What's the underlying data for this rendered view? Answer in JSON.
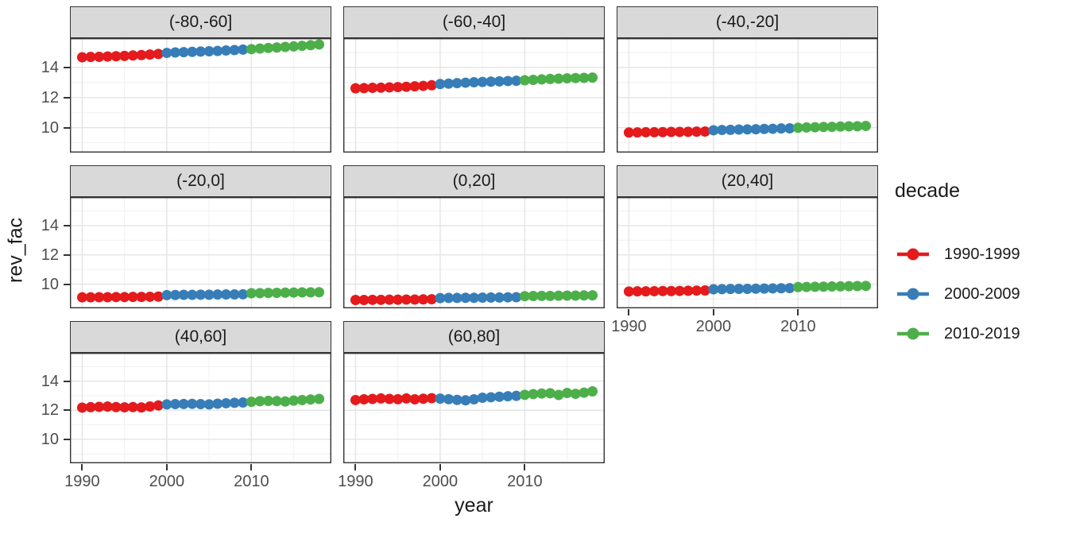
{
  "chart_data": {
    "type": "scatter",
    "title": "",
    "xlabel": "year",
    "ylabel": "rev_fac",
    "grid": true,
    "legend_position": "right",
    "legend": {
      "title": "decade",
      "entries": [
        {
          "label": "1990-1999",
          "color": "#E41A1C"
        },
        {
          "label": "2000-2009",
          "color": "#377EB8"
        },
        {
          "label": "2010-2019",
          "color": "#4DAF4A"
        }
      ]
    },
    "decades": [
      {
        "name": "1990-1999",
        "from": 1990,
        "to": 1999,
        "color": "#E41A1C"
      },
      {
        "name": "2000-2009",
        "from": 2000,
        "to": 2009,
        "color": "#377EB8"
      },
      {
        "name": "2010-2019",
        "from": 2010,
        "to": 2019,
        "color": "#4DAF4A"
      }
    ],
    "years": [
      1990,
      1991,
      1992,
      1993,
      1994,
      1995,
      1996,
      1997,
      1998,
      1999,
      2000,
      2001,
      2002,
      2003,
      2004,
      2005,
      2006,
      2007,
      2008,
      2009,
      2010,
      2011,
      2012,
      2013,
      2014,
      2015,
      2016,
      2017,
      2018
    ],
    "x_ticks": [
      1990,
      2000,
      2010
    ],
    "x_minor": [
      1995,
      2005,
      2015
    ],
    "y_ticks": [
      10,
      12,
      14
    ],
    "y_minor": [
      9,
      11,
      13,
      15
    ],
    "xlim": [
      1988.55,
      2019.45
    ],
    "ylim": [
      8.35,
      15.95
    ],
    "facets": [
      {
        "label": "(-80,-60]",
        "values": [
          14.68,
          14.7,
          14.71,
          14.73,
          14.75,
          14.77,
          14.8,
          14.83,
          14.86,
          14.9,
          14.97,
          15.0,
          15.02,
          15.04,
          15.06,
          15.08,
          15.1,
          15.13,
          15.16,
          15.19,
          15.22,
          15.26,
          15.3,
          15.33,
          15.37,
          15.4,
          15.44,
          15.48,
          15.53
        ]
      },
      {
        "label": "(-60,-40]",
        "values": [
          12.62,
          12.63,
          12.65,
          12.66,
          12.68,
          12.7,
          12.72,
          12.75,
          12.78,
          12.82,
          12.9,
          12.93,
          12.96,
          12.99,
          13.02,
          13.04,
          13.06,
          13.08,
          13.1,
          13.12,
          13.15,
          13.18,
          13.21,
          13.24,
          13.26,
          13.28,
          13.3,
          13.31,
          13.33
        ]
      },
      {
        "label": "(-40,-20]",
        "values": [
          9.68,
          9.69,
          9.7,
          9.7,
          9.71,
          9.72,
          9.72,
          9.73,
          9.74,
          9.75,
          9.83,
          9.85,
          9.86,
          9.88,
          9.89,
          9.9,
          9.92,
          9.93,
          9.95,
          9.96,
          10.0,
          10.02,
          10.03,
          10.05,
          10.06,
          10.08,
          10.09,
          10.1,
          10.12
        ]
      },
      {
        "label": "(-20,0]",
        "values": [
          9.1,
          9.1,
          9.11,
          9.11,
          9.12,
          9.12,
          9.13,
          9.13,
          9.14,
          9.15,
          9.25,
          9.26,
          9.27,
          9.27,
          9.28,
          9.28,
          9.29,
          9.3,
          9.3,
          9.31,
          9.38,
          9.39,
          9.4,
          9.41,
          9.42,
          9.43,
          9.44,
          9.44,
          9.45
        ]
      },
      {
        "label": "(0,20]",
        "values": [
          8.92,
          8.92,
          8.93,
          8.93,
          8.94,
          8.94,
          8.95,
          8.95,
          8.96,
          8.97,
          9.05,
          9.06,
          9.06,
          9.07,
          9.07,
          9.08,
          9.09,
          9.09,
          9.1,
          9.11,
          9.18,
          9.19,
          9.2,
          9.2,
          9.21,
          9.22,
          9.22,
          9.23,
          9.24
        ]
      },
      {
        "label": "(20,40]",
        "values": [
          9.5,
          9.51,
          9.51,
          9.52,
          9.53,
          9.53,
          9.54,
          9.55,
          9.56,
          9.57,
          9.65,
          9.66,
          9.67,
          9.68,
          9.68,
          9.69,
          9.7,
          9.71,
          9.72,
          9.73,
          9.8,
          9.81,
          9.82,
          9.83,
          9.84,
          9.85,
          9.86,
          9.87,
          9.88
        ]
      },
      {
        "label": "(40,60]",
        "values": [
          12.18,
          12.21,
          12.23,
          12.25,
          12.22,
          12.2,
          12.22,
          12.19,
          12.26,
          12.33,
          12.4,
          12.42,
          12.43,
          12.44,
          12.42,
          12.4,
          12.45,
          12.48,
          12.51,
          12.53,
          12.58,
          12.62,
          12.64,
          12.63,
          12.6,
          12.66,
          12.7,
          12.74,
          12.78
        ]
      },
      {
        "label": "(60,80]",
        "values": [
          12.7,
          12.75,
          12.78,
          12.81,
          12.78,
          12.76,
          12.81,
          12.75,
          12.79,
          12.83,
          12.8,
          12.76,
          12.71,
          12.68,
          12.75,
          12.86,
          12.89,
          12.93,
          12.96,
          12.99,
          13.06,
          13.11,
          13.15,
          13.17,
          13.05,
          13.19,
          13.13,
          13.21,
          13.3
        ]
      }
    ],
    "colors": {
      "strip_fill": "#D9D9D9",
      "panel_border": "#333333",
      "grid_major": "#E4E4E4",
      "grid_minor": "#F2F2F2",
      "tick_text": "#4D4D4D",
      "point_red": "#E41A1C",
      "point_blue": "#377EB8",
      "point_green": "#4DAF4A"
    }
  }
}
